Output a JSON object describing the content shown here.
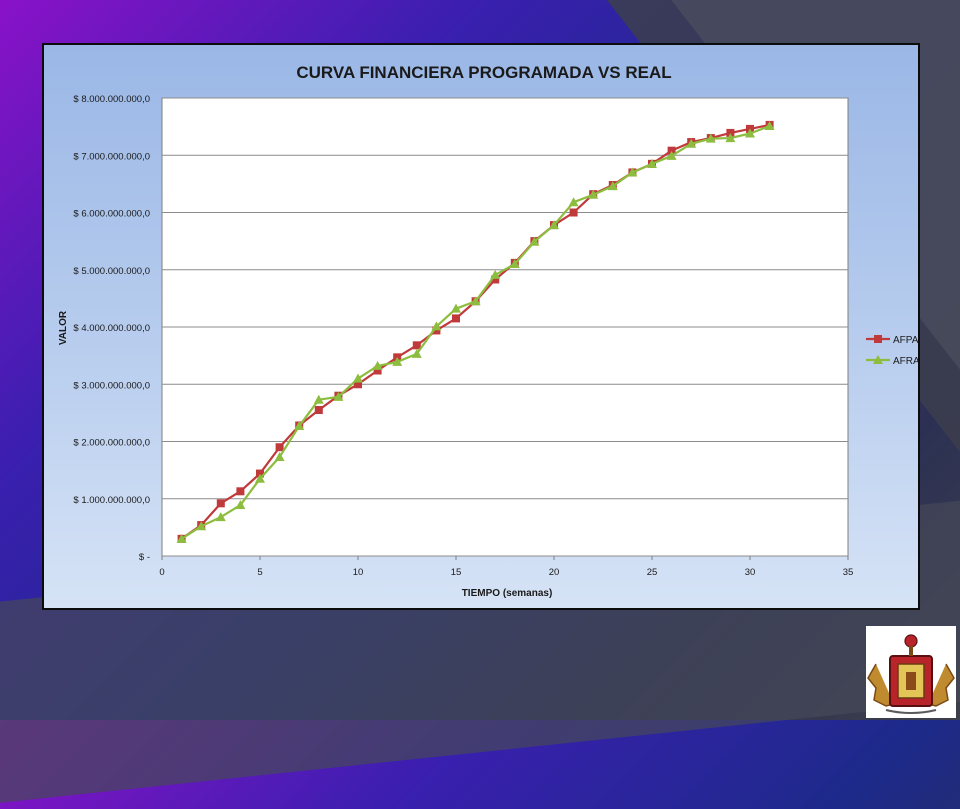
{
  "chart_data": {
    "type": "line",
    "title": "CURVA FINANCIERA PROGRAMADA VS REAL",
    "xlabel": "TIEMPO (semanas)",
    "ylabel": "VALOR",
    "xlim": [
      0,
      35
    ],
    "ylim": [
      0,
      8000000000
    ],
    "x_ticks": [
      0,
      5,
      10,
      15,
      20,
      25,
      30,
      35
    ],
    "y_ticks": [
      0,
      1000000000,
      2000000000,
      3000000000,
      4000000000,
      5000000000,
      6000000000,
      7000000000,
      8000000000
    ],
    "y_tick_labels": [
      "$ -",
      "$ 1.000.000.000,0",
      "$ 2.000.000.000,0",
      "$ 3.000.000.000,0",
      "$ 4.000.000.000,0",
      "$ 5.000.000.000,0",
      "$ 6.000.000.000,0",
      "$ 7.000.000.000,0",
      "$ 8.000.000.000,0"
    ],
    "grid": "horizontal",
    "legend_position": "right",
    "x": [
      1,
      2,
      3,
      4,
      5,
      6,
      7,
      8,
      9,
      10,
      11,
      12,
      13,
      14,
      15,
      16,
      17,
      18,
      19,
      20,
      21,
      22,
      23,
      24,
      25,
      26,
      27,
      28,
      29,
      30,
      31
    ],
    "series": [
      {
        "name": "AFPA",
        "color": "#c0393b",
        "marker": "square",
        "values": [
          300000000,
          540000000,
          920000000,
          1130000000,
          1440000000,
          1900000000,
          2280000000,
          2550000000,
          2800000000,
          3000000000,
          3240000000,
          3470000000,
          3680000000,
          3940000000,
          4150000000,
          4450000000,
          4830000000,
          5120000000,
          5500000000,
          5780000000,
          6000000000,
          6320000000,
          6480000000,
          6700000000,
          6850000000,
          7080000000,
          7230000000,
          7300000000,
          7390000000,
          7460000000,
          7530000000
        ]
      },
      {
        "name": "AFRA",
        "color": "#8dbd3f",
        "marker": "triangle",
        "values": [
          300000000,
          520000000,
          680000000,
          890000000,
          1350000000,
          1730000000,
          2270000000,
          2730000000,
          2780000000,
          3100000000,
          3320000000,
          3390000000,
          3530000000,
          4010000000,
          4320000000,
          4450000000,
          4910000000,
          5100000000,
          5490000000,
          5780000000,
          6180000000,
          6310000000,
          6460000000,
          6700000000,
          6850000000,
          6990000000,
          7200000000,
          7290000000,
          7300000000,
          7380000000,
          7510000000
        ]
      }
    ]
  },
  "colors": {
    "plot_background": "#ffffff",
    "gridline": "#8c8c8c",
    "axis": "#7f7f7f"
  },
  "logo": {
    "icon": "university-coat-of-arms-icon"
  }
}
